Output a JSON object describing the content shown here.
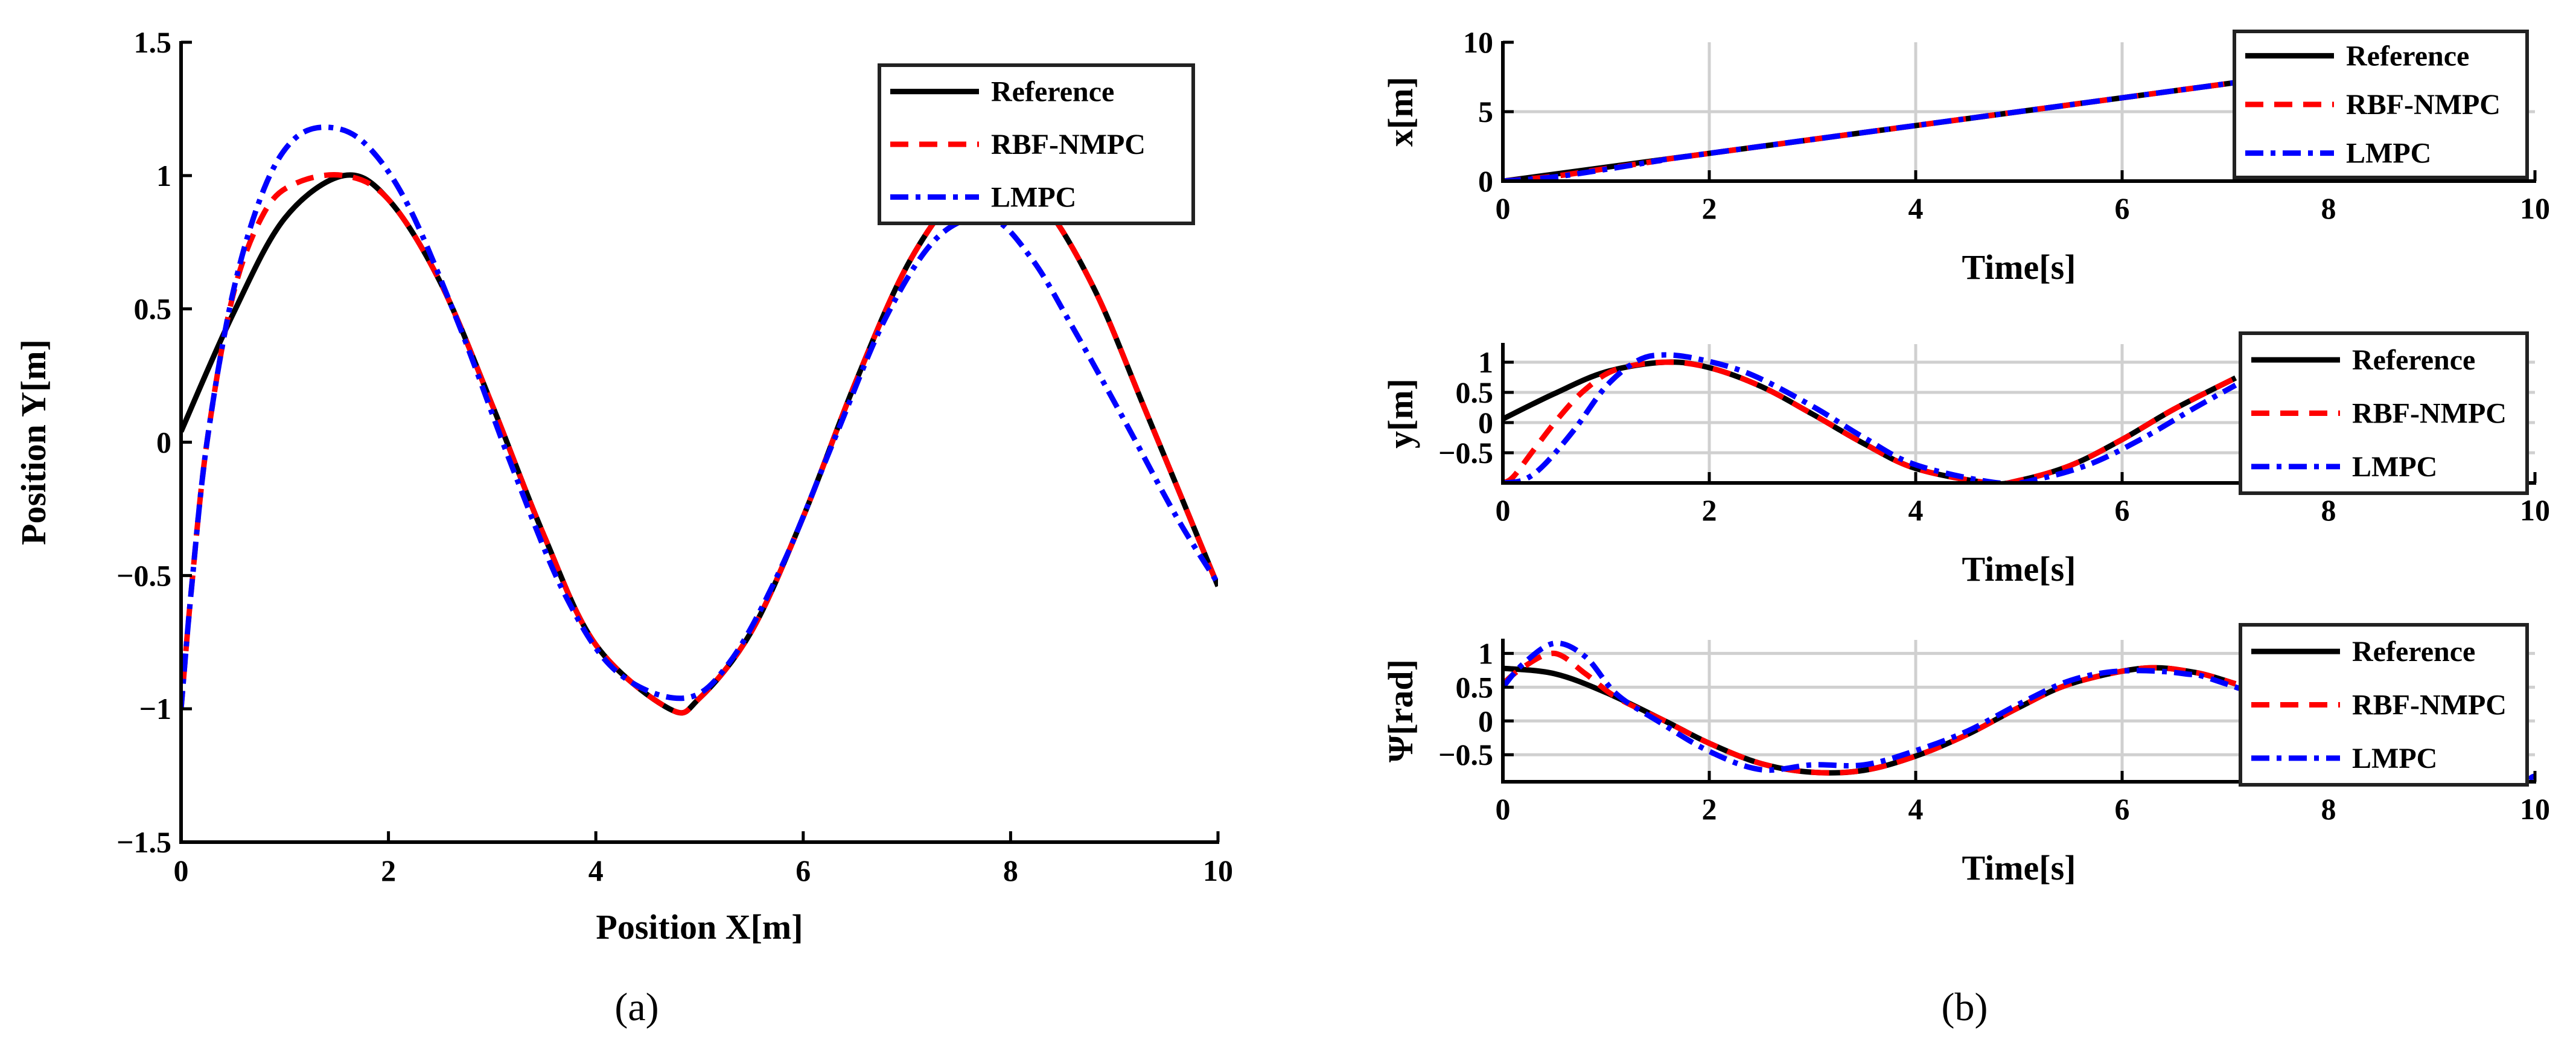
{
  "captions": {
    "a": "(a)",
    "b": "(b)"
  },
  "series_styles": [
    {
      "name": "Reference",
      "color": "#000000",
      "dash": ""
    },
    {
      "name": "RBF-NMPC",
      "color": "#ff0000",
      "dash": "30 18"
    },
    {
      "name": "LMPC",
      "color": "#0000ff",
      "dash": "30 12 8 12"
    }
  ],
  "chart_data": [
    {
      "id": "a",
      "type": "line",
      "title": "",
      "xlabel": "Position X[m]",
      "ylabel": "Position Y[m]",
      "xlim": [
        0,
        10
      ],
      "ylim": [
        -1.5,
        1.5
      ],
      "grid": false,
      "legend": "top-right",
      "xticks": [
        0,
        2,
        4,
        6,
        8,
        10
      ],
      "xtick_labels": [
        "0",
        "2",
        "4",
        "6",
        "8",
        "10"
      ],
      "yticks": [
        1.5,
        1,
        0.5,
        0,
        -0.5,
        -1,
        -1.5
      ],
      "ytick_labels": [
        "1.5",
        "1",
        "0.5",
        "0",
        "−0.5",
        "−1",
        "−1.5"
      ],
      "series": [
        {
          "name": "Reference",
          "x": [
            0,
            0.5,
            1,
            1.57,
            2,
            2.5,
            3,
            3.5,
            4,
            4.71,
            5,
            5.5,
            6,
            6.5,
            7,
            7.5,
            7.85,
            8.3,
            8.8,
            9.3,
            10
          ],
          "y": [
            0.04,
            0.48,
            0.84,
            1,
            0.91,
            0.6,
            0.14,
            -0.35,
            -0.76,
            -1,
            -0.96,
            -0.71,
            -0.28,
            0.22,
            0.66,
            0.94,
            1,
            0.9,
            0.58,
            0.12,
            -0.54
          ]
        },
        {
          "name": "RBF-NMPC",
          "x": [
            0,
            0.1,
            0.25,
            0.5,
            0.8,
            1.1,
            1.57,
            2,
            2.5,
            3,
            3.5,
            4,
            4.71,
            5,
            5.5,
            6,
            6.5,
            7,
            7.5,
            7.85,
            8.3,
            8.8,
            9.3,
            10
          ],
          "y": [
            -1,
            -0.55,
            0,
            0.55,
            0.86,
            0.97,
            1,
            0.91,
            0.6,
            0.14,
            -0.35,
            -0.76,
            -1,
            -0.96,
            -0.71,
            -0.28,
            0.22,
            0.66,
            0.94,
            1,
            0.9,
            0.58,
            0.12,
            -0.54
          ]
        },
        {
          "name": "LMPC",
          "x": [
            0,
            0.1,
            0.25,
            0.5,
            0.8,
            1.1,
            1.45,
            1.8,
            2.2,
            2.7,
            3.2,
            3.7,
            4.2,
            4.85,
            5.3,
            5.8,
            6.3,
            6.8,
            7.3,
            7.8,
            8.2,
            8.6,
            9.1,
            9.6,
            10
          ],
          "y": [
            -1,
            -0.55,
            0,
            0.56,
            0.95,
            1.14,
            1.18,
            1.11,
            0.88,
            0.42,
            -0.1,
            -0.57,
            -0.86,
            -0.96,
            -0.82,
            -0.46,
            0.01,
            0.47,
            0.77,
            0.84,
            0.69,
            0.43,
            0.08,
            -0.28,
            -0.53
          ]
        }
      ]
    },
    {
      "id": "b1",
      "type": "line",
      "title": "",
      "xlabel": "Time[s]",
      "ylabel": "x[m]",
      "xlim": [
        0,
        10
      ],
      "ylim": [
        0,
        10
      ],
      "grid": true,
      "legend": "top-right",
      "xticks": [
        0,
        2,
        4,
        6,
        8,
        10
      ],
      "xtick_labels": [
        "0",
        "2",
        "4",
        "6",
        "8",
        "10"
      ],
      "yticks": [
        10,
        5,
        0
      ],
      "ytick_labels": [
        "10",
        "5",
        "0"
      ],
      "series": [
        {
          "name": "Reference",
          "x": [
            0,
            7.1
          ],
          "y": [
            0,
            7.1
          ]
        },
        {
          "name": "RBF-NMPC",
          "x": [
            0,
            0.5,
            1,
            1.5,
            2,
            7.1
          ],
          "y": [
            0,
            0.35,
            0.9,
            1.45,
            2,
            7.1
          ]
        },
        {
          "name": "LMPC",
          "x": [
            0,
            0.5,
            1,
            1.5,
            2,
            7.1
          ],
          "y": [
            0,
            0.3,
            0.85,
            1.45,
            2,
            7.1
          ]
        }
      ]
    },
    {
      "id": "b2",
      "type": "line",
      "title": "",
      "xlabel": "Time[s]",
      "ylabel": "y[m]",
      "xlim": [
        0,
        10
      ],
      "ylim": [
        -1,
        1.3
      ],
      "grid": true,
      "legend": "top-right",
      "xticks": [
        0,
        2,
        4,
        6,
        8,
        10
      ],
      "xtick_labels": [
        "0",
        "2",
        "4",
        "6",
        "8",
        "10"
      ],
      "yticks": [
        1,
        0.5,
        0,
        -0.5
      ],
      "ytick_labels": [
        "1",
        "0.5",
        "0",
        "−0.5"
      ],
      "series": [
        {
          "name": "Reference",
          "x": [
            0,
            0.5,
            1,
            1.57,
            2,
            2.5,
            3,
            3.5,
            4,
            4.71,
            5,
            5.5,
            6,
            6.5,
            7.1
          ],
          "y": [
            0.06,
            0.48,
            0.84,
            1,
            0.91,
            0.6,
            0.14,
            -0.35,
            -0.76,
            -1,
            -0.96,
            -0.71,
            -0.28,
            0.22,
            0.74
          ]
        },
        {
          "name": "RBF-NMPC",
          "x": [
            0,
            0.1,
            0.3,
            0.55,
            0.8,
            1.1,
            1.57,
            2,
            2.5,
            3,
            3.5,
            4,
            4.71,
            5,
            5.5,
            6,
            6.5,
            7.1
          ],
          "y": [
            -1,
            -0.9,
            -0.45,
            0.1,
            0.55,
            0.88,
            1,
            0.91,
            0.6,
            0.14,
            -0.35,
            -0.76,
            -1,
            -0.96,
            -0.71,
            -0.28,
            0.22,
            0.74
          ]
        },
        {
          "name": "LMPC",
          "x": [
            0,
            0.2,
            0.4,
            0.7,
            1,
            1.3,
            1.55,
            1.9,
            2.4,
            3,
            3.5,
            4,
            4.8,
            5.2,
            5.7,
            6.2,
            6.7,
            7.1
          ],
          "y": [
            -1,
            -0.95,
            -0.7,
            -0.1,
            0.6,
            1.02,
            1.12,
            1.05,
            0.8,
            0.27,
            -0.25,
            -0.7,
            -1,
            -0.93,
            -0.68,
            -0.26,
            0.24,
            0.62
          ]
        }
      ]
    },
    {
      "id": "b3",
      "type": "line",
      "title": "",
      "xlabel": "Time[s]",
      "ylabel": "Ψ[rad]",
      "xlim": [
        0,
        10
      ],
      "ylim": [
        -0.9,
        1.2
      ],
      "grid": true,
      "legend": "top-right",
      "xticks": [
        0,
        2,
        4,
        6,
        8,
        10
      ],
      "xtick_labels": [
        "0",
        "2",
        "4",
        "6",
        "8",
        "10"
      ],
      "yticks": [
        1,
        0.5,
        0,
        -0.5
      ],
      "ytick_labels": [
        "1",
        "0.5",
        "0",
        "−0.5"
      ],
      "series": [
        {
          "name": "Reference",
          "x": [
            0,
            0.5,
            1,
            1.57,
            2,
            2.5,
            3,
            3.5,
            4,
            4.5,
            5,
            5.5,
            6.2,
            6.7,
            7.1
          ],
          "y": [
            0.78,
            0.7,
            0.42,
            0,
            -0.33,
            -0.63,
            -0.76,
            -0.73,
            -0.52,
            -0.2,
            0.2,
            0.55,
            0.78,
            0.72,
            0.55
          ]
        },
        {
          "name": "RBF-NMPC",
          "x": [
            0,
            0.2,
            0.5,
            0.8,
            1.1,
            1.57,
            2,
            2.5,
            3,
            3.5,
            4,
            4.5,
            5,
            5.5,
            6.2,
            6.7,
            7.1
          ],
          "y": [
            0.55,
            0.8,
            1.0,
            0.7,
            0.35,
            0,
            -0.33,
            -0.63,
            -0.76,
            -0.73,
            -0.52,
            -0.2,
            0.2,
            0.55,
            0.78,
            0.72,
            0.55
          ]
        },
        {
          "name": "LMPC",
          "x": [
            0,
            0.2,
            0.5,
            0.8,
            1.1,
            1.5,
            2,
            2.5,
            3,
            3.5,
            4,
            4.5,
            5,
            5.5,
            6,
            6.6,
            7.1,
            9.5,
            10
          ],
          "y": [
            0.5,
            0.85,
            1.15,
            0.95,
            0.4,
            0.0,
            -0.45,
            -0.72,
            -0.65,
            -0.65,
            -0.44,
            -0.15,
            0.25,
            0.6,
            0.74,
            0.7,
            0.5,
            -0.82,
            -0.82
          ]
        }
      ]
    }
  ]
}
